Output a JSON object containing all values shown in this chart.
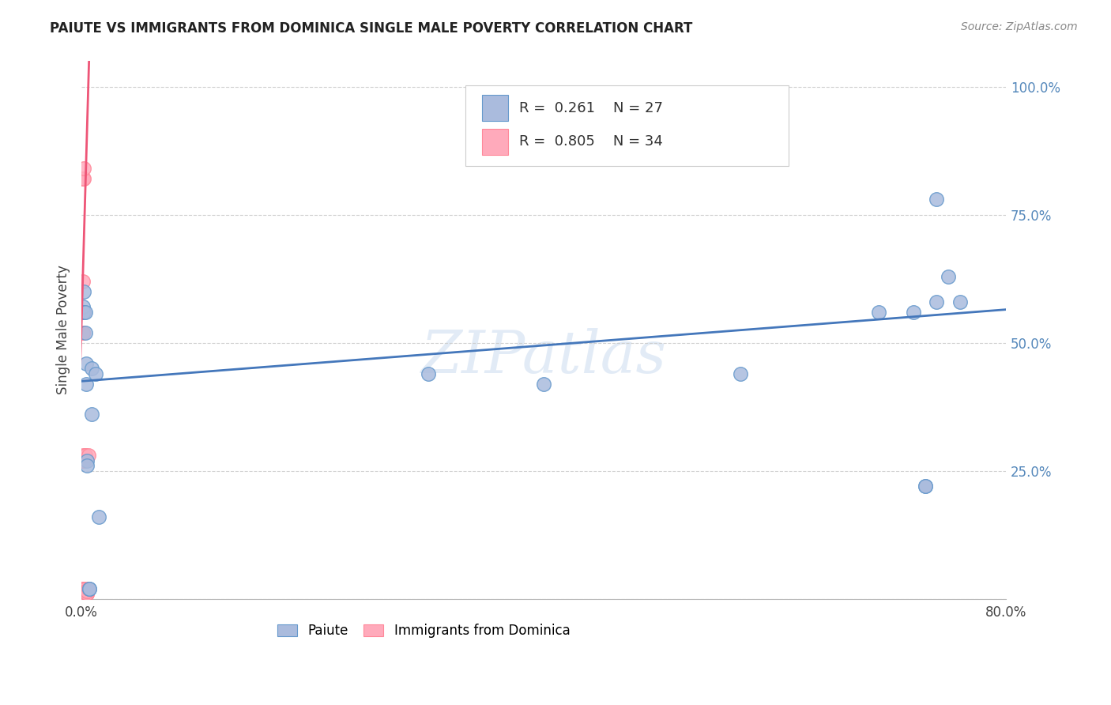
{
  "title": "PAIUTE VS IMMIGRANTS FROM DOMINICA SINGLE MALE POVERTY CORRELATION CHART",
  "source": "Source: ZipAtlas.com",
  "ylabel": "Single Male Poverty",
  "background_color": "#ffffff",
  "watermark": "ZIPatlas",
  "paiute_color": "#aabbdd",
  "paiute_edge_color": "#6699cc",
  "dominica_color": "#ffaabb",
  "dominica_edge_color": "#ff8899",
  "paiute_line_color": "#4477bb",
  "dominica_line_color": "#ee5577",
  "paiute_R": "0.261",
  "paiute_N": "27",
  "dominica_R": "0.805",
  "dominica_N": "34",
  "paiute_x": [
    0.001,
    0.001,
    0.002,
    0.002,
    0.003,
    0.003,
    0.004,
    0.004,
    0.005,
    0.005,
    0.007,
    0.007,
    0.009,
    0.009,
    0.012,
    0.015,
    0.3,
    0.4,
    0.57,
    0.69,
    0.72,
    0.73,
    0.73,
    0.74,
    0.74,
    0.75,
    0.76
  ],
  "paiute_y": [
    0.56,
    0.57,
    0.6,
    0.56,
    0.56,
    0.52,
    0.46,
    0.42,
    0.27,
    0.26,
    0.02,
    0.02,
    0.45,
    0.36,
    0.44,
    0.16,
    0.44,
    0.42,
    0.44,
    0.56,
    0.56,
    0.22,
    0.22,
    0.58,
    0.78,
    0.63,
    0.58
  ],
  "dominica_x": [
    0.0005,
    0.001,
    0.001,
    0.001,
    0.001,
    0.001,
    0.001,
    0.001,
    0.001,
    0.001,
    0.001,
    0.001,
    0.001,
    0.001,
    0.001,
    0.001,
    0.0015,
    0.002,
    0.002,
    0.002,
    0.002,
    0.003,
    0.003,
    0.003,
    0.003,
    0.004,
    0.004,
    0.005,
    0.005,
    0.005,
    0.005,
    0.005,
    0.006,
    0.006
  ],
  "dominica_y": [
    0.005,
    0.01,
    0.01,
    0.015,
    0.015,
    0.015,
    0.015,
    0.02,
    0.02,
    0.27,
    0.27,
    0.28,
    0.52,
    0.52,
    0.82,
    0.82,
    0.62,
    0.27,
    0.27,
    0.82,
    0.84,
    0.28,
    0.28,
    0.02,
    0.015,
    0.015,
    0.015,
    0.01,
    0.01,
    0.01,
    0.015,
    0.015,
    0.02,
    0.28
  ],
  "xlim": [
    0.0,
    0.8
  ],
  "ylim": [
    0.0,
    1.05
  ],
  "blue_line_x0": 0.0,
  "blue_line_x1": 0.8,
  "blue_line_y0": 0.425,
  "blue_line_y1": 0.565,
  "pink_line_x0": -0.002,
  "pink_line_x1": 0.0065,
  "pink_line_y0": 0.38,
  "pink_line_y1": 1.05
}
